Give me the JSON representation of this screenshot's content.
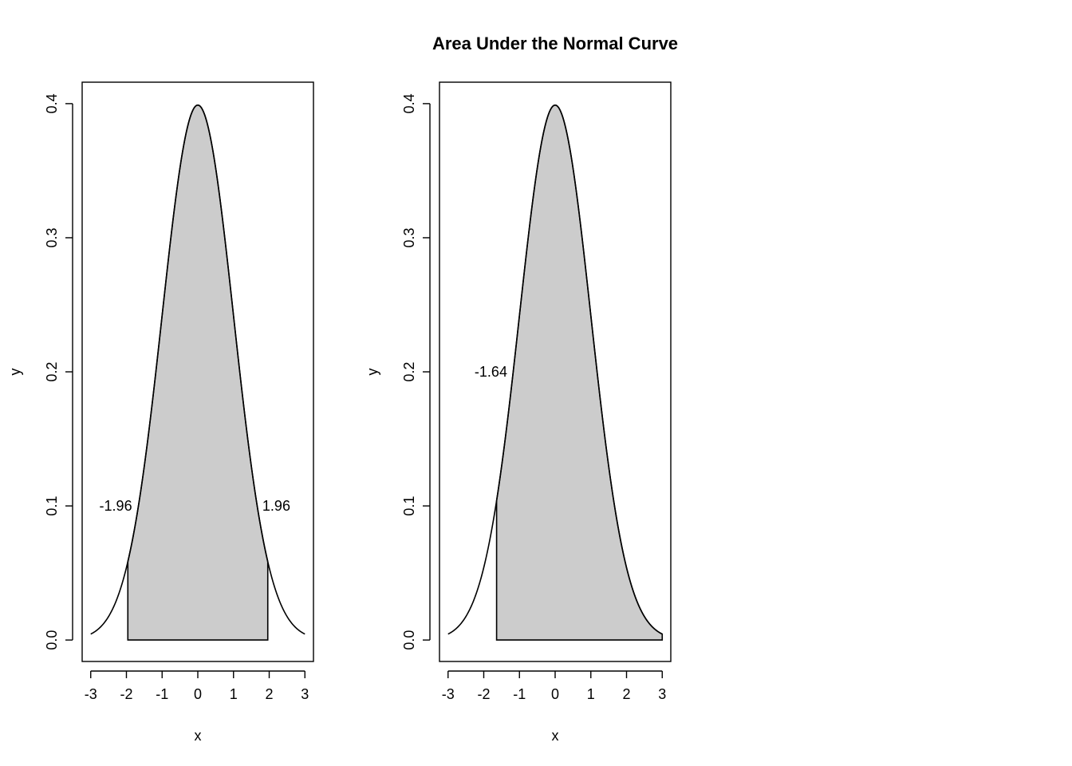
{
  "figure": {
    "title": "Area Under the Normal Curve",
    "background": "#ffffff",
    "fill_color": "#cccccc",
    "line_color": "#000000"
  },
  "chart_data": [
    {
      "type": "area",
      "function": "standard normal density",
      "x": [
        -3,
        -2.75,
        -2.5,
        -2.25,
        -2,
        -1.75,
        -1.5,
        -1.25,
        -1,
        -0.75,
        -0.5,
        -0.25,
        0,
        0.25,
        0.5,
        0.75,
        1,
        1.25,
        1.5,
        1.75,
        2,
        2.25,
        2.5,
        2.75,
        3
      ],
      "y": [
        0.0044,
        0.0091,
        0.0175,
        0.0317,
        0.054,
        0.0863,
        0.1295,
        0.1826,
        0.242,
        0.3011,
        0.3521,
        0.3867,
        0.3989,
        0.3867,
        0.3521,
        0.3011,
        0.242,
        0.1826,
        0.1295,
        0.0863,
        0.054,
        0.0317,
        0.0175,
        0.0091,
        0.0044
      ],
      "shaded_from": -1.96,
      "shaded_to": 1.96,
      "annotations": [
        {
          "text": "-1.96",
          "x": -2.3,
          "y": 0.1
        },
        {
          "text": "1.96",
          "x": 2.2,
          "y": 0.1
        }
      ],
      "xlabel": "x",
      "ylabel": "y",
      "xlim": [
        -3,
        3
      ],
      "ylim": [
        0,
        0.4
      ],
      "xticks": [
        "-3",
        "-2",
        "-1",
        "0",
        "1",
        "2",
        "3"
      ],
      "yticks": [
        "0.0",
        "0.1",
        "0.2",
        "0.3",
        "0.4"
      ],
      "grid": false
    },
    {
      "type": "area",
      "function": "standard normal density",
      "x": [
        -3,
        -2.75,
        -2.5,
        -2.25,
        -2,
        -1.75,
        -1.5,
        -1.25,
        -1,
        -0.75,
        -0.5,
        -0.25,
        0,
        0.25,
        0.5,
        0.75,
        1,
        1.25,
        1.5,
        1.75,
        2,
        2.25,
        2.5,
        2.75,
        3
      ],
      "y": [
        0.0044,
        0.0091,
        0.0175,
        0.0317,
        0.054,
        0.0863,
        0.1295,
        0.1826,
        0.242,
        0.3011,
        0.3521,
        0.3867,
        0.3989,
        0.3867,
        0.3521,
        0.3011,
        0.242,
        0.1826,
        0.1295,
        0.0863,
        0.054,
        0.0317,
        0.0175,
        0.0091,
        0.0044
      ],
      "shaded_from": -1.64,
      "shaded_to": 3,
      "annotations": [
        {
          "text": "-1.64",
          "x": -1.8,
          "y": 0.2
        }
      ],
      "xlabel": "x",
      "ylabel": "y",
      "xlim": [
        -3,
        3
      ],
      "ylim": [
        0,
        0.4
      ],
      "xticks": [
        "-3",
        "-2",
        "-1",
        "0",
        "1",
        "2",
        "3"
      ],
      "yticks": [
        "0.0",
        "0.1",
        "0.2",
        "0.3",
        "0.4"
      ],
      "grid": false
    }
  ]
}
